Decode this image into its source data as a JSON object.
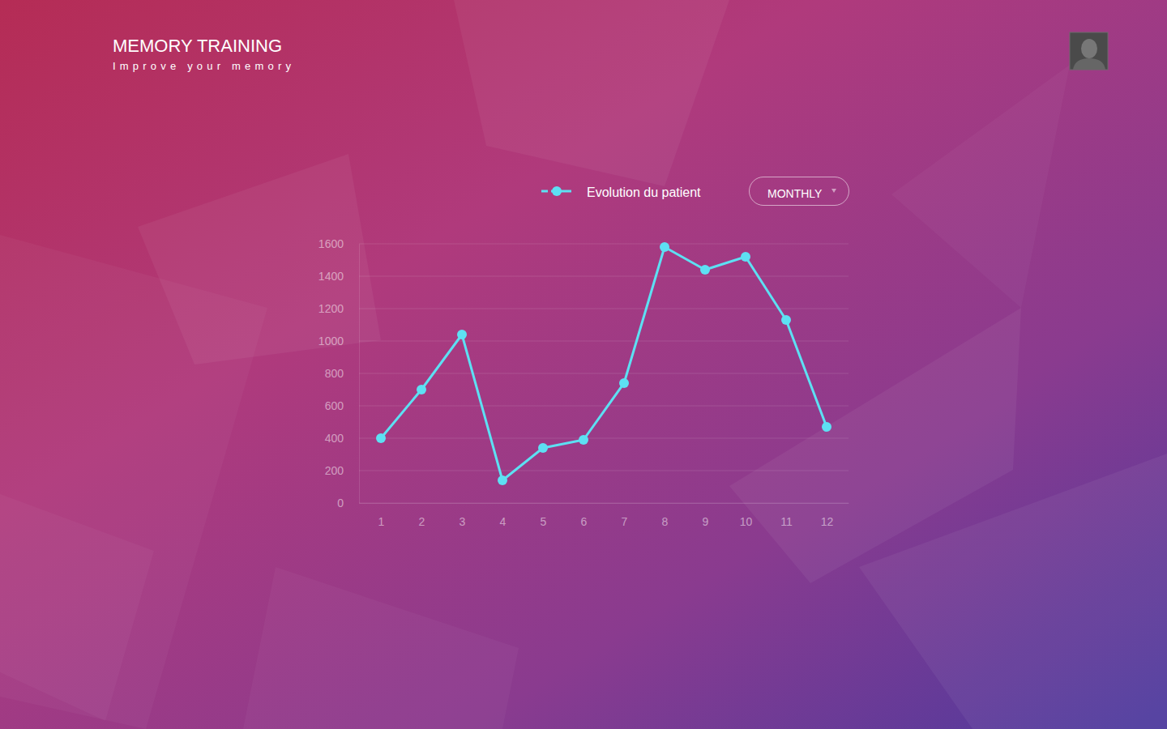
{
  "header": {
    "title": "MEMORY TRAINING",
    "subtitle": "Improve your memory"
  },
  "controls": {
    "period": "MONTHLY"
  },
  "chart_data": {
    "type": "line",
    "categories": [
      "1",
      "2",
      "3",
      "4",
      "5",
      "6",
      "7",
      "8",
      "9",
      "10",
      "11",
      "12"
    ],
    "series": [
      {
        "name": "Evolution du patient",
        "color": "#5de0f3",
        "marker": "circle",
        "values": [
          400,
          700,
          1040,
          140,
          340,
          390,
          740,
          1580,
          1440,
          1520,
          1130,
          470
        ]
      }
    ],
    "ylim": [
      0,
      1600
    ],
    "yticks": [
      0,
      200,
      400,
      600,
      800,
      1000,
      1200,
      1400,
      1600
    ],
    "grid": true,
    "legend": "top"
  }
}
